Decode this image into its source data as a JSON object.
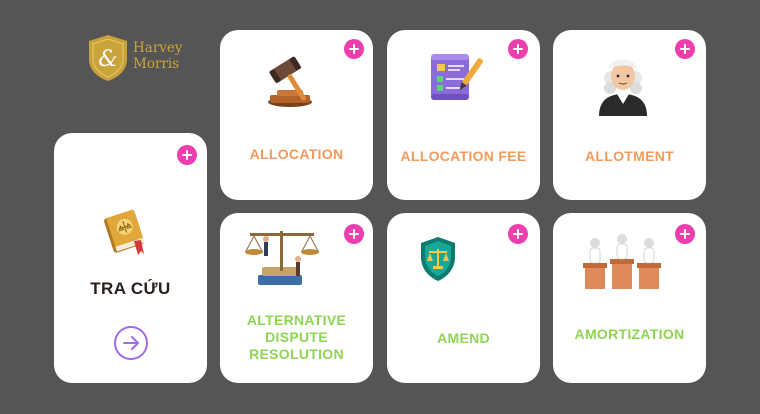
{
  "brand": {
    "line1": "Harvey",
    "line2": "Morris",
    "monogram": "&",
    "color": "#caa33a"
  },
  "search_card": {
    "title": "TRA CỨU",
    "arrow_icon": "arrow-right-circle-icon"
  },
  "terms": [
    {
      "label": "ALLOCATION",
      "icon": "gavel-icon",
      "color": "#f29a5c"
    },
    {
      "label": "ALLOCATION FEE",
      "icon": "contract-scroll-icon",
      "color": "#f29a5c"
    },
    {
      "label": "ALLOTMENT",
      "icon": "judge-icon",
      "color": "#f29a5c"
    },
    {
      "label_lines": [
        "ALTERNATIVE",
        "DISPUTE",
        "RESOLUTION"
      ],
      "icon": "scales-of-justice-icon",
      "color": "#8fd453"
    },
    {
      "label": "AMEND",
      "icon": "justice-shield-icon",
      "color": "#8fd453"
    },
    {
      "label": "AMORTIZATION",
      "icon": "courtroom-icon",
      "color": "#8fd453"
    }
  ],
  "colors": {
    "background": "#555555",
    "card": "#ffffff",
    "plus": "#ec3fae",
    "arrow": "#a06be8"
  }
}
